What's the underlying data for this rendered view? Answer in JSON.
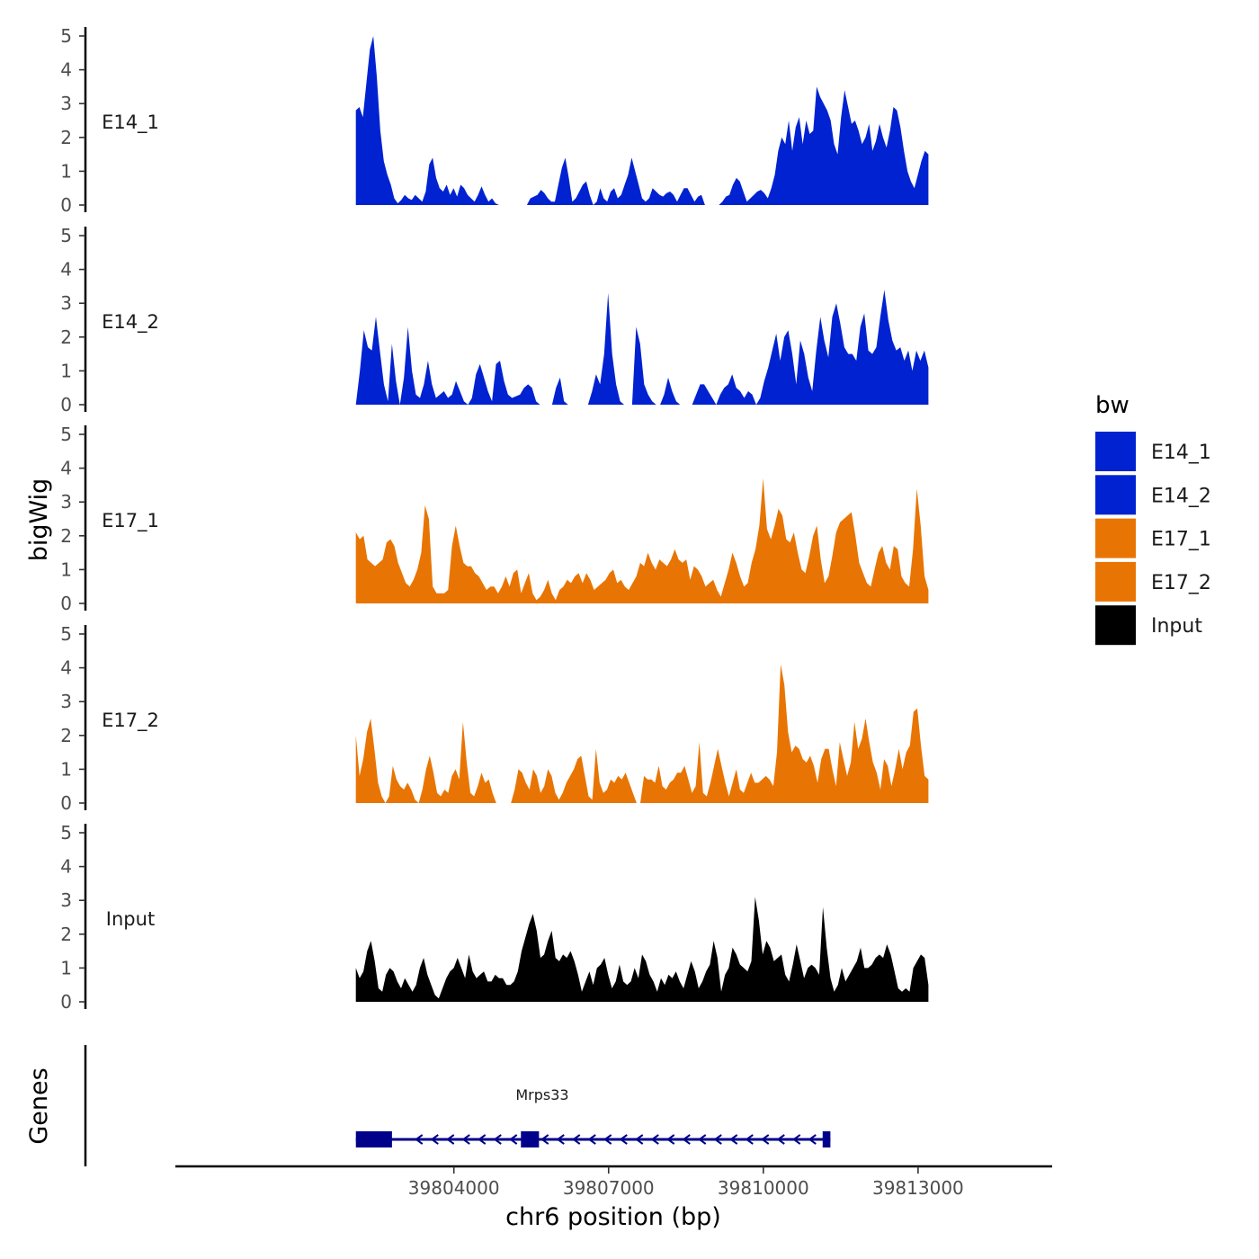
{
  "chart_data": {
    "type": "area",
    "ylabel": "bigWig",
    "xlabel": "chr6 position (bp)",
    "xlim": [
      39798600,
      39815600
    ],
    "ylim": [
      0,
      5
    ],
    "yticks": [
      "0",
      "1",
      "2",
      "3",
      "4",
      "5"
    ],
    "xticks": [
      {
        "value": 39804000,
        "label": "39804000"
      },
      {
        "value": 39807000,
        "label": "39807000"
      },
      {
        "value": 39810000,
        "label": "39810000"
      },
      {
        "value": 39813000,
        "label": "39813000"
      }
    ],
    "x_start": 39802100,
    "x_end": 39813200,
    "tracks": [
      {
        "name": "E14_1",
        "color": "#0022D1",
        "values": [
          2.8,
          2.9,
          2.6,
          3.6,
          4.6,
          5.0,
          3.8,
          2.2,
          1.3,
          0.9,
          0.6,
          0.2,
          0.05,
          0.15,
          0.3,
          0.2,
          0.15,
          0.3,
          0.2,
          0.1,
          0.4,
          1.2,
          1.4,
          0.8,
          0.5,
          0.4,
          0.6,
          0.3,
          0.5,
          0.25,
          0.6,
          0.5,
          0.3,
          0.2,
          0.1,
          0.3,
          0.55,
          0.3,
          0.1,
          0.2,
          0.05,
          0.0,
          0.0,
          0.0,
          0.0,
          0.0,
          0.0,
          0.0,
          0.0,
          0.0,
          0.2,
          0.25,
          0.3,
          0.45,
          0.35,
          0.2,
          0.1,
          0.1,
          0.6,
          1.1,
          1.4,
          0.8,
          0.1,
          0.2,
          0.4,
          0.6,
          0.7,
          0.3,
          0.0,
          0.1,
          0.5,
          0.2,
          0.1,
          0.4,
          0.5,
          0.2,
          0.3,
          0.6,
          0.9,
          1.4,
          1.0,
          0.6,
          0.2,
          0.1,
          0.2,
          0.5,
          0.4,
          0.3,
          0.25,
          0.35,
          0.4,
          0.3,
          0.1,
          0.3,
          0.5,
          0.5,
          0.3,
          0.1,
          0.25,
          0.3,
          0.0,
          0.0,
          0.0,
          0.0,
          0.0,
          0.1,
          0.25,
          0.3,
          0.6,
          0.8,
          0.7,
          0.4,
          0.1,
          0.2,
          0.3,
          0.4,
          0.45,
          0.35,
          0.2,
          0.5,
          0.9,
          1.6,
          2.0,
          1.8,
          2.5,
          1.6,
          2.3,
          2.6,
          1.8,
          2.5,
          2.1,
          2.2,
          3.5,
          3.2,
          3.0,
          2.8,
          2.5,
          1.8,
          1.5,
          2.6,
          3.4,
          2.9,
          2.4,
          2.5,
          2.2,
          1.8,
          2.0,
          2.4,
          1.6,
          1.9,
          2.4,
          2.0,
          1.7,
          2.2,
          2.9,
          2.8,
          2.3,
          1.6,
          1.0,
          0.7,
          0.5,
          0.9,
          1.3,
          1.6,
          1.5
        ]
      },
      {
        "name": "E14_2",
        "color": "#0022D1",
        "values": [
          0.0,
          1.0,
          2.2,
          1.7,
          1.6,
          2.6,
          1.6,
          0.6,
          0.1,
          1.8,
          0.7,
          0.0,
          0.8,
          2.3,
          1.0,
          0.3,
          0.2,
          0.6,
          1.3,
          0.6,
          0.2,
          0.3,
          0.4,
          0.2,
          0.3,
          0.7,
          0.4,
          0.1,
          0.0,
          0.2,
          0.9,
          1.2,
          0.8,
          0.4,
          0.1,
          1.2,
          1.3,
          0.7,
          0.3,
          0.2,
          0.25,
          0.3,
          0.5,
          0.6,
          0.5,
          0.1,
          0.0,
          0.0,
          0.0,
          0.0,
          0.5,
          0.8,
          0.1,
          0.0,
          0.0,
          0.0,
          0.0,
          0.0,
          0.0,
          0.4,
          0.9,
          0.6,
          1.5,
          3.3,
          1.5,
          0.6,
          0.1,
          0.0,
          0.0,
          0.0,
          2.3,
          1.8,
          0.6,
          0.3,
          0.1,
          0.0,
          0.0,
          0.3,
          0.8,
          0.4,
          0.1,
          0.0,
          0.0,
          0.0,
          0.0,
          0.3,
          0.6,
          0.6,
          0.4,
          0.2,
          0.0,
          0.3,
          0.5,
          0.6,
          0.9,
          0.5,
          0.4,
          0.2,
          0.4,
          0.3,
          0.0,
          0.2,
          0.7,
          1.1,
          1.6,
          2.1,
          1.3,
          2.0,
          2.2,
          1.5,
          0.6,
          1.9,
          1.5,
          0.8,
          0.4,
          1.6,
          2.6,
          1.9,
          1.4,
          2.6,
          3.0,
          2.4,
          1.7,
          1.5,
          1.5,
          1.3,
          2.3,
          2.7,
          1.6,
          1.5,
          1.7,
          2.6,
          3.4,
          2.5,
          1.9,
          1.6,
          1.7,
          1.3,
          1.6,
          1.0,
          1.6,
          1.3,
          1.6,
          1.1
        ]
      },
      {
        "name": "E17_1",
        "color": "#E87503",
        "values": [
          2.1,
          1.9,
          2.0,
          1.3,
          1.2,
          1.1,
          1.2,
          1.3,
          1.8,
          1.9,
          1.7,
          1.2,
          0.9,
          0.6,
          0.5,
          0.7,
          1.0,
          1.5,
          2.9,
          2.5,
          0.5,
          0.3,
          0.3,
          0.3,
          0.4,
          1.7,
          2.3,
          1.7,
          1.2,
          1.1,
          1.1,
          0.9,
          0.8,
          0.6,
          0.4,
          0.5,
          0.5,
          0.3,
          0.5,
          0.8,
          0.5,
          0.9,
          1.0,
          0.3,
          0.6,
          0.9,
          0.3,
          0.1,
          0.2,
          0.4,
          0.7,
          0.3,
          0.1,
          0.4,
          0.5,
          0.7,
          0.6,
          0.8,
          0.9,
          0.6,
          0.9,
          0.7,
          0.4,
          0.5,
          0.6,
          0.7,
          0.9,
          1.0,
          0.6,
          0.7,
          0.5,
          0.4,
          0.6,
          0.8,
          1.2,
          1.1,
          1.5,
          1.2,
          1.0,
          1.3,
          1.2,
          1.1,
          1.3,
          1.6,
          1.3,
          1.2,
          1.3,
          0.7,
          1.1,
          1.0,
          0.8,
          0.5,
          0.6,
          0.7,
          0.4,
          0.2,
          0.6,
          1.0,
          1.5,
          1.2,
          0.8,
          0.5,
          0.6,
          1.2,
          1.6,
          2.3,
          3.7,
          2.2,
          1.9,
          2.3,
          2.8,
          2.6,
          1.9,
          1.8,
          2.1,
          1.5,
          1.0,
          0.9,
          1.4,
          2.0,
          2.3,
          1.3,
          0.6,
          0.8,
          1.4,
          2.1,
          2.4,
          2.5,
          2.6,
          2.7,
          2.0,
          1.2,
          0.9,
          0.6,
          0.5,
          1.0,
          1.5,
          1.7,
          1.2,
          1.0,
          1.7,
          1.6,
          0.8,
          0.6,
          0.5,
          1.6,
          3.4,
          2.3,
          0.8,
          0.4
        ]
      },
      {
        "name": "E17_2",
        "color": "#E87503",
        "values": [
          2.0,
          0.8,
          1.3,
          2.1,
          2.5,
          1.6,
          0.6,
          0.2,
          0.0,
          0.2,
          1.1,
          0.7,
          0.5,
          0.4,
          0.6,
          0.4,
          0.1,
          0.0,
          0.4,
          1.0,
          1.4,
          0.9,
          0.3,
          0.2,
          0.4,
          0.3,
          0.8,
          1.0,
          0.7,
          2.4,
          1.2,
          0.3,
          0.2,
          0.5,
          0.9,
          0.6,
          0.7,
          0.3,
          0.0,
          0.0,
          0.0,
          0.0,
          0.0,
          0.4,
          1.0,
          0.9,
          0.6,
          0.4,
          1.0,
          0.8,
          0.3,
          0.5,
          1.0,
          0.8,
          0.3,
          0.1,
          0.3,
          0.6,
          0.8,
          1.0,
          1.3,
          1.4,
          0.8,
          0.2,
          0.1,
          1.6,
          0.6,
          0.3,
          0.4,
          0.7,
          0.6,
          0.8,
          0.7,
          0.9,
          0.6,
          0.3,
          0.0,
          0.0,
          0.8,
          0.7,
          0.7,
          0.6,
          1.1,
          0.5,
          0.4,
          0.6,
          0.7,
          0.9,
          0.9,
          1.1,
          0.7,
          0.3,
          0.5,
          1.8,
          0.3,
          0.2,
          0.6,
          1.1,
          1.6,
          1.1,
          0.6,
          0.2,
          0.6,
          1.0,
          0.4,
          0.3,
          0.6,
          0.9,
          0.6,
          0.6,
          0.7,
          0.8,
          0.7,
          0.5,
          1.5,
          4.1,
          3.5,
          2.1,
          1.5,
          1.7,
          1.6,
          1.3,
          1.2,
          1.4,
          1.1,
          0.6,
          1.3,
          1.6,
          1.6,
          1.0,
          0.5,
          1.8,
          1.3,
          0.8,
          1.2,
          2.4,
          1.6,
          1.9,
          2.5,
          1.8,
          1.2,
          0.9,
          0.4,
          1.3,
          1.1,
          0.5,
          1.0,
          1.6,
          1.0,
          1.5,
          1.7,
          2.7,
          2.8,
          1.7,
          0.8,
          0.7
        ]
      },
      {
        "name": "Input",
        "color": "#000000",
        "values": [
          1.0,
          0.7,
          0.9,
          1.5,
          1.8,
          1.2,
          0.4,
          0.3,
          0.8,
          1.0,
          0.9,
          0.6,
          0.4,
          0.7,
          0.5,
          0.3,
          0.5,
          1.0,
          1.3,
          0.8,
          0.5,
          0.2,
          0.1,
          0.4,
          0.7,
          0.9,
          1.0,
          1.3,
          1.0,
          0.7,
          1.4,
          0.9,
          0.7,
          0.8,
          0.9,
          0.6,
          0.6,
          0.8,
          0.7,
          0.7,
          0.5,
          0.5,
          0.6,
          0.9,
          1.5,
          1.9,
          2.3,
          2.6,
          2.1,
          1.3,
          1.4,
          1.8,
          2.1,
          1.3,
          1.2,
          1.4,
          1.3,
          1.5,
          1.2,
          0.8,
          0.3,
          0.6,
          0.9,
          0.5,
          1.0,
          1.1,
          1.3,
          0.8,
          0.4,
          0.6,
          1.1,
          0.6,
          0.5,
          0.6,
          1.0,
          0.7,
          1.4,
          1.2,
          0.8,
          0.6,
          0.3,
          0.7,
          0.5,
          0.8,
          0.7,
          0.9,
          0.6,
          0.4,
          0.8,
          1.2,
          0.9,
          0.4,
          0.6,
          0.9,
          1.1,
          1.8,
          1.3,
          0.3,
          0.8,
          1.0,
          1.6,
          1.4,
          1.1,
          1.0,
          0.9,
          1.2,
          3.1,
          2.4,
          1.4,
          1.8,
          1.6,
          1.2,
          1.3,
          1.4,
          0.8,
          0.6,
          1.1,
          1.7,
          1.2,
          0.7,
          1.0,
          1.1,
          1.0,
          0.8,
          2.8,
          1.6,
          0.7,
          0.3,
          0.5,
          1.0,
          0.6,
          0.8,
          1.0,
          1.2,
          1.6,
          1.0,
          1.0,
          1.1,
          1.3,
          1.4,
          1.3,
          1.7,
          1.4,
          0.9,
          0.4,
          0.3,
          0.4,
          0.3,
          1.0,
          1.2,
          1.4,
          1.3,
          0.5
        ]
      }
    ],
    "legend": {
      "title": "bw",
      "entries": [
        {
          "label": "E14_1",
          "color": "#0022D1"
        },
        {
          "label": "E14_2",
          "color": "#0022D1"
        },
        {
          "label": "E17_1",
          "color": "#E87503"
        },
        {
          "label": "E17_2",
          "color": "#E87503"
        },
        {
          "label": "Input",
          "color": "#000000"
        }
      ]
    },
    "genes": {
      "track_title": "Genes",
      "color": "#00008B",
      "name": "Mrps33",
      "start": 39802100,
      "end": 39811300,
      "strand": "-",
      "exons": [
        [
          39802100,
          39802800
        ],
        [
          39805300,
          39805650
        ],
        [
          39811150,
          39811300
        ]
      ]
    }
  }
}
